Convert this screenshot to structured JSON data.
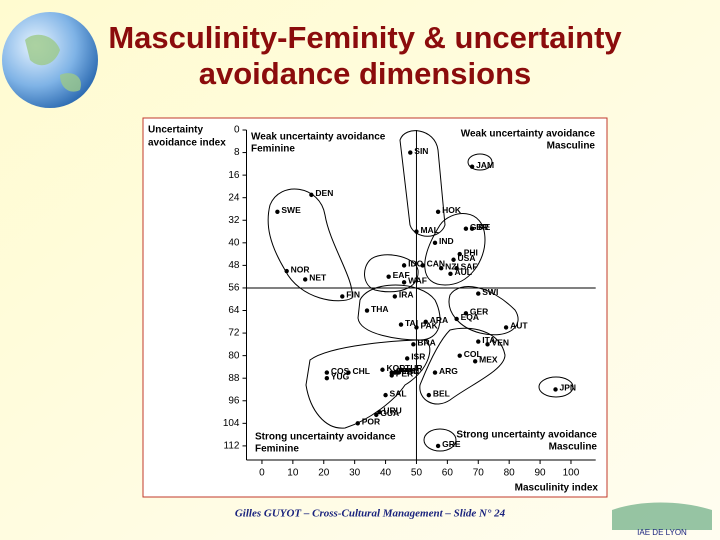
{
  "title": "Masculinity-Feminity & uncertainty avoidance dimensions",
  "footer": "Gilles GUYOT – Cross-Cultural Management – Slide N° 24",
  "logo_text": "IAE DE LYON",
  "chart_data": {
    "type": "scatter",
    "y_label": [
      "Uncertainty",
      "avoidance index"
    ],
    "x_label": "Masculinity index",
    "quadrant_labels": [
      [
        "Weak uncertainty avoidance",
        "Feminine"
      ],
      [
        "Weak uncertainty avoidance",
        "Masculine"
      ],
      [
        "Strong uncertainty avoidance",
        "Feminine"
      ],
      [
        "Strong uncertainty avoidance",
        "Masculine"
      ]
    ],
    "labels": [
      "SIN",
      "JAM",
      "HOK",
      "GBR",
      "IRE",
      "MAL",
      "IND",
      "PHI",
      "USA",
      "CAN",
      "NZL",
      "SAF",
      "AUL",
      "IDO",
      "WAF",
      "EAF",
      "SWE",
      "DEN",
      "NOR",
      "NET",
      "FIN",
      "IRA",
      "SWI",
      "GER",
      "THA",
      "ARA",
      "TAI",
      "PAK",
      "EQA",
      "AUT",
      "ITA",
      "VEN",
      "COL",
      "MEX",
      "BRA",
      "ISR",
      "TUR",
      "KOR",
      "FRA",
      "COS",
      "CHL",
      "SPA",
      "PAN",
      "PER",
      "YUG",
      "ARG",
      "BEL",
      "SAL",
      "JPN",
      "URU",
      "GUA",
      "POR",
      "GRE"
    ],
    "x": [
      48,
      68,
      57,
      66,
      68,
      50,
      56,
      64,
      62,
      52,
      58,
      63,
      61,
      46,
      46,
      41,
      5,
      16,
      8,
      14,
      26,
      43,
      70,
      66,
      34,
      53,
      45,
      50,
      63,
      79,
      70,
      73,
      64,
      69,
      49,
      47,
      45,
      39,
      43,
      21,
      28,
      42,
      44,
      42,
      21,
      56,
      54,
      40,
      95,
      38,
      37,
      31,
      57
    ],
    "values": [
      8,
      13,
      29,
      35,
      35,
      36,
      40,
      44,
      46,
      48,
      49,
      49,
      51,
      48,
      54,
      52,
      29,
      23,
      50,
      53,
      59,
      59,
      58,
      65,
      64,
      68,
      69,
      70,
      67,
      70,
      75,
      76,
      80,
      82,
      76,
      81,
      85,
      85,
      86,
      86,
      86,
      86,
      86,
      87,
      88,
      86,
      94,
      94,
      92,
      100,
      101,
      104,
      112
    ],
    "color": "#000000",
    "xlim": [
      -5,
      108
    ],
    "xticks": [
      0,
      10,
      20,
      30,
      40,
      50,
      60,
      70,
      80,
      90,
      100
    ],
    "ylim": [
      117,
      0
    ],
    "yticks": [
      0,
      8,
      16,
      24,
      32,
      40,
      48,
      56,
      64,
      72,
      80,
      88,
      96,
      104,
      112
    ],
    "reference_lines": {
      "x": 50,
      "y": 56
    }
  }
}
